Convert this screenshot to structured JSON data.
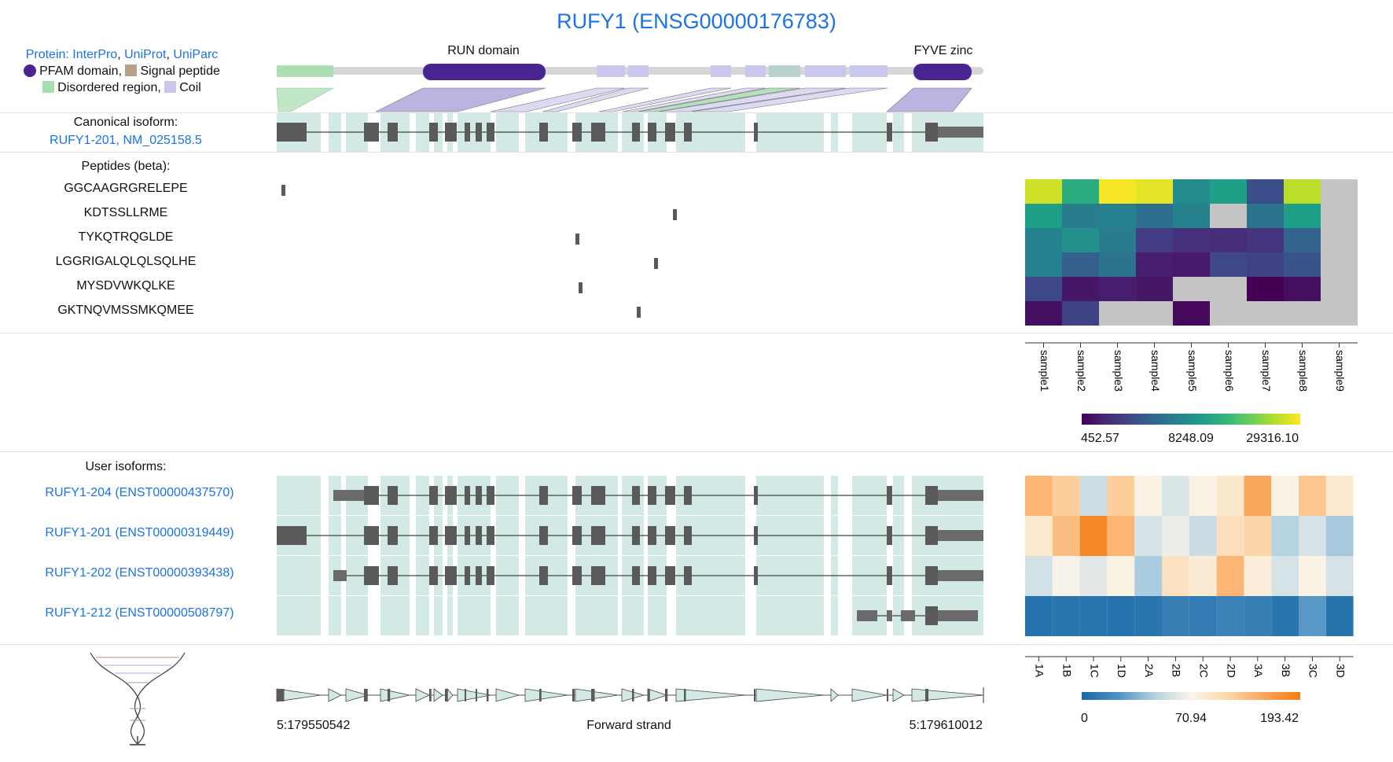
{
  "title": "RUFY1 (ENSG00000176783)",
  "protein_links": {
    "prefix": "Protein:",
    "interpro": "InterPro",
    "uniprot": "UniProt",
    "uniparc": "UniParc",
    "sep1": ",",
    "sep2": ","
  },
  "legend": {
    "pfam": "PFAM domain,",
    "signal": "Signal peptide",
    "disordered": "Disordered region,",
    "coil": "Coil"
  },
  "domains": {
    "run": "RUN domain",
    "fyve": "FYVE zinc"
  },
  "canonical": {
    "heading": "Canonical isoform:",
    "name": "RUFY1-201",
    "sep": ",",
    "refseq": "NM_025158.5"
  },
  "peptides": {
    "heading": "Peptides (beta):",
    "items": [
      "GGCAAGRGRELEPE",
      "KDTSSLLRME",
      "TYKQTRQGLDE",
      "LGGRIGALQLQLSQLHE",
      "MYSDVWKQLKE",
      "GKTNQVMSSMKQMEE"
    ]
  },
  "peptide_heatmap": {
    "samples": [
      "sample1",
      "sample2",
      "sample3",
      "sample4",
      "sample5",
      "sample6",
      "sample7",
      "sample8",
      "sample9"
    ],
    "values": [
      [
        0.93,
        0.62,
        0.99,
        0.96,
        0.48,
        0.56,
        0.24,
        0.9,
        null
      ],
      [
        0.56,
        0.42,
        0.44,
        0.36,
        0.44,
        null,
        0.38,
        0.56,
        null
      ],
      [
        0.44,
        0.5,
        0.42,
        0.18,
        0.14,
        0.13,
        0.15,
        0.32,
        null
      ],
      [
        0.44,
        0.3,
        0.38,
        0.08,
        0.07,
        0.22,
        0.2,
        0.26,
        null
      ],
      [
        0.22,
        0.06,
        0.08,
        0.06,
        null,
        null,
        0.0,
        0.04,
        null
      ],
      [
        0.04,
        0.2,
        null,
        null,
        0.02,
        null,
        null,
        null,
        null
      ]
    ],
    "colorbar_labels": [
      "452.57",
      "8248.09",
      "29316.10"
    ]
  },
  "user_isoforms": {
    "heading": "User isoforms:",
    "items": [
      "RUFY1-204 (ENST00000437570)",
      "RUFY1-201 (ENST00000319449)",
      "RUFY1-202 (ENST00000393438)",
      "RUFY1-212 (ENST00000508797)"
    ]
  },
  "isoform_heatmap": {
    "columns": [
      "1A",
      "1B",
      "1C",
      "1D",
      "2A",
      "2B",
      "2C",
      "2D",
      "3A",
      "3B",
      "3C",
      "3D"
    ],
    "values": [
      [
        150,
        135,
        76,
        135,
        100,
        82,
        100,
        112,
        160,
        100,
        140,
        110
      ],
      [
        110,
        145,
        185,
        150,
        80,
        90,
        75,
        120,
        130,
        65,
        80,
        60
      ],
      [
        78,
        95,
        85,
        100,
        62,
        118,
        108,
        150,
        105,
        80,
        100,
        80
      ],
      [
        7,
        10,
        10,
        7,
        10,
        18,
        15,
        20,
        18,
        10,
        35,
        8
      ]
    ],
    "colorbar_labels": [
      "0",
      "70.94",
      "193.42"
    ]
  },
  "genome": {
    "start": "5:179550542",
    "strand": "Forward strand",
    "end": "5:179610012"
  },
  "colors": {
    "link": "#1a73e8",
    "pfam": "#4a2591",
    "signal": "#b5a088",
    "disordered": "#a6deaf",
    "coil": "#c9c8ec",
    "exon_band": "#d3e9e6",
    "exon": "#5a5a5a",
    "missing": "#c4c4c4"
  }
}
